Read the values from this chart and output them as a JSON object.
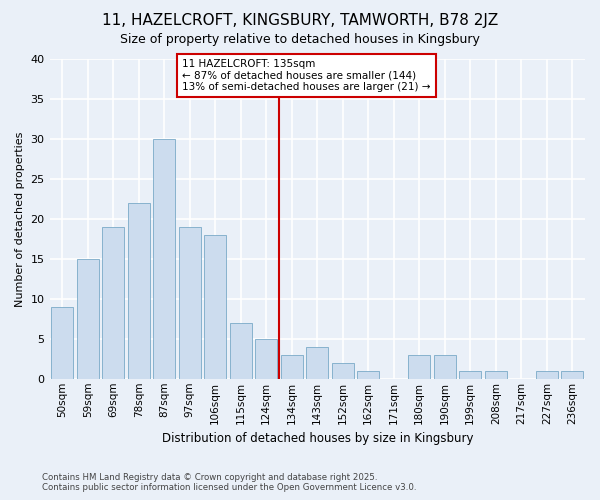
{
  "title": "11, HAZELCROFT, KINGSBURY, TAMWORTH, B78 2JZ",
  "subtitle": "Size of property relative to detached houses in Kingsbury",
  "xlabel": "Distribution of detached houses by size in Kingsbury",
  "ylabel": "Number of detached properties",
  "bar_labels": [
    "50sqm",
    "59sqm",
    "69sqm",
    "78sqm",
    "87sqm",
    "97sqm",
    "106sqm",
    "115sqm",
    "124sqm",
    "134sqm",
    "143sqm",
    "152sqm",
    "162sqm",
    "171sqm",
    "180sqm",
    "190sqm",
    "199sqm",
    "208sqm",
    "217sqm",
    "227sqm",
    "236sqm"
  ],
  "bar_values": [
    9,
    15,
    19,
    22,
    30,
    19,
    18,
    7,
    5,
    3,
    4,
    2,
    1,
    0,
    3,
    3,
    1,
    1,
    0,
    1,
    1
  ],
  "bar_color": "#ccdcee",
  "bar_edge_color": "#7aaac8",
  "vline_index": 9,
  "reference_line_label": "11 HAZELCROFT: 135sqm",
  "annotation_line1": "← 87% of detached houses are smaller (144)",
  "annotation_line2": "13% of semi-detached houses are larger (21) →",
  "annotation_box_color": "#cc0000",
  "vline_color": "#cc0000",
  "bg_color": "#eaf0f8",
  "plot_bg_color": "#eaf0f8",
  "grid_color": "#ffffff",
  "ylim": [
    0,
    40
  ],
  "yticks": [
    0,
    5,
    10,
    15,
    20,
    25,
    30,
    35,
    40
  ],
  "footer_line1": "Contains HM Land Registry data © Crown copyright and database right 2025.",
  "footer_line2": "Contains public sector information licensed under the Open Government Licence v3.0."
}
